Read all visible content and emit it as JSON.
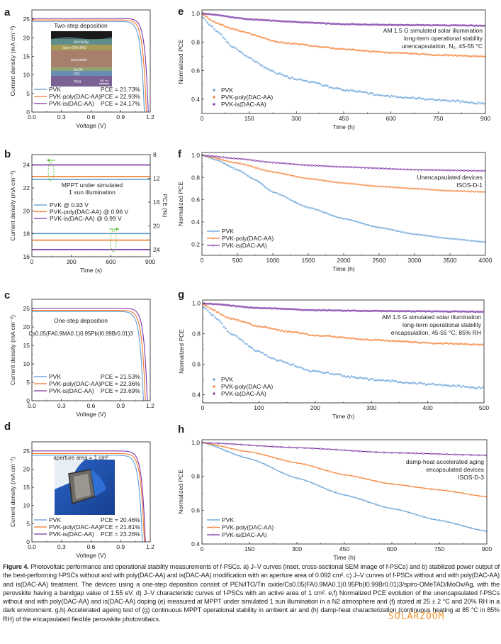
{
  "figure": {
    "caption_label": "Figure 4.",
    "caption_text": "Photovoltaic performance and operational stability measurements of f-PSCs. a) J–V curves (inset, cross-sectional SEM image of f-PSCs) and b) stabilized power output of the best-performing f-PSCs without and with poly(DAC-AA) and is(DAC-AA) modification with an aperture area of 0.092 cm². c) J–V curves of f-PSCs without and with poly(DAC-AA) and is(DAC-AA) treatment. The devices using a one-step deposition consist of PEN/ITO/Tin oxide/Cs0.05(FA0.9MA0.1)0.95Pb(I0.99Br0.01)3/spiro-OMeTAD/MoOx/Ag, with the perovskite having a bandgap value of 1.55 eV. d) J–V characteristic curves of f-PSCs with an active area of 1 cm². e,f) Normalized PCE evolution of the unencapsulated f-PSCs without and with poly(DAC-AA) and is(DAC-AA) doping (e) measured at MPPT under simulated 1 sun illumination in a N2 atmosphere and (f) stored at 25 ± 2 °C and 20% RH in a dark environment. g,h) Accelerated ageing test of (g) continuous MPPT operational stability in ambient air and (h) damp-heat characterization (continuous heating at 85 °C in 85% RH) of the encapsulated flexible perovskite photovoltaics.",
    "watermark": "SOLARZOOM"
  },
  "colors": {
    "PVK": "#5b9bd5",
    "PVK-poly(DAC-AA)": "#f47a2a",
    "PVK-is(DAC-AA)": "#7d33a6",
    "annotation_arrow": "#5fbf3a"
  },
  "chart_data": [
    {
      "panel": "a",
      "type": "line",
      "xlabel": "Voltage (V)",
      "ylabel": "Current density (mA cm⁻²)",
      "xlim": [
        0,
        1.2
      ],
      "ylim": [
        0,
        27.5
      ],
      "xticks": [
        0,
        0.3,
        0.6,
        0.9,
        1.2
      ],
      "xtick_labels": [
        "0.0",
        "0.3",
        "0.6",
        "0.9",
        "1.2"
      ],
      "yticks": [
        0,
        5,
        10,
        15,
        20,
        25
      ],
      "ytick_labels": [
        "0",
        "5",
        "10",
        "15",
        "20",
        "25"
      ],
      "annotations": [
        "Two-step deposition"
      ],
      "inset": {
        "type": "SEM image",
        "layers": [
          "MoOx/Ag",
          "Spiro-OMeTAD",
          "perovskite",
          "SnO2",
          "ITO",
          "PEN"
        ],
        "scale_bar": "500 nm"
      },
      "legend_placement": "bottom-left",
      "series": [
        {
          "name": "PVK",
          "value_label": "PCE = 21.73%",
          "jsc": 24.4,
          "voc": 1.14
        },
        {
          "name": "PVK-poly(DAC-AA)",
          "value_label": "PCE = 22.93%",
          "jsc": 24.8,
          "voc": 1.16
        },
        {
          "name": "PVK-is(DAC-AA)",
          "value_label": "PCE = 24.17%",
          "jsc": 25.2,
          "voc": 1.18
        }
      ]
    },
    {
      "panel": "b",
      "type": "line",
      "xlabel": "Time (s)",
      "ylabel": "Current density (mA cm⁻²)",
      "y2label": "PCE (%)",
      "xlim": [
        0,
        900
      ],
      "ylim": [
        16,
        24.9
      ],
      "y2lim": [
        8,
        25.2
      ],
      "y2_inverted": true,
      "xticks": [
        0,
        300,
        600,
        900
      ],
      "xtick_labels": [
        "0",
        "300",
        "600",
        "900"
      ],
      "yticks": [
        16,
        18,
        20,
        22,
        24
      ],
      "ytick_labels": [
        "16",
        "18",
        "20",
        "22",
        "24"
      ],
      "y2ticks": [
        8,
        12,
        16,
        20,
        24
      ],
      "y2tick_labels": [
        "8",
        "12",
        "16",
        "20",
        "24"
      ],
      "annotations": [
        "MPPT under simulated",
        "1 sun illumination"
      ],
      "legend_placement": "center-left",
      "series": [
        {
          "name": "PVK @ 0.93 V",
          "key": "PVK",
          "current_density": 22.75,
          "pce": 21.3
        },
        {
          "name": "PVK-poly(DAC-AA) @ 0.96 V",
          "key": "PVK-poly(DAC-AA)",
          "current_density": 23.0,
          "pce": 22.4
        },
        {
          "name": "PVK-is(DAC-AA) @ 0.99 V",
          "key": "PVK-is(DAC-AA)",
          "current_density": 24.0,
          "pce": 24.0
        }
      ]
    },
    {
      "panel": "c",
      "type": "line",
      "xlabel": "Voltage (V)",
      "ylabel": "Current density (mA cm⁻²)",
      "xlim": [
        0,
        1.2
      ],
      "ylim": [
        0,
        27.5
      ],
      "xticks": [
        0,
        0.3,
        0.6,
        0.9,
        1.2
      ],
      "xtick_labels": [
        "0.0",
        "0.3",
        "0.6",
        "0.9",
        "1.2"
      ],
      "yticks": [
        0,
        5,
        10,
        15,
        20,
        25
      ],
      "ytick_labels": [
        "0",
        "5",
        "10",
        "15",
        "20",
        "25"
      ],
      "annotations": [
        "One-step deposition",
        "Cs0.05(FA0.9MA0.1)0.95Pb(I0.99Br0.01)3"
      ],
      "legend_placement": "bottom-left",
      "series": [
        {
          "name": "PVK",
          "value_label": "PCE = 21.53%",
          "jsc": 24.2,
          "voc": 1.13
        },
        {
          "name": "PVK-poly(DAC-AA)",
          "value_label": "PCE = 22.36%",
          "jsc": 24.5,
          "voc": 1.15
        },
        {
          "name": "PVK-is(DAC-AA)",
          "value_label": "PCE = 23.69%",
          "jsc": 25.1,
          "voc": 1.17
        }
      ]
    },
    {
      "panel": "d",
      "type": "line",
      "xlabel": "Voltage (V)",
      "ylabel": "Current density (mA cm⁻²)",
      "xlim": [
        0,
        1.2
      ],
      "ylim": [
        0,
        27.5
      ],
      "xticks": [
        0,
        0.3,
        0.6,
        0.9,
        1.2
      ],
      "xtick_labels": [
        "0.0",
        "0.3",
        "0.6",
        "0.9",
        "1.2"
      ],
      "yticks": [
        0,
        5,
        10,
        15,
        20,
        25
      ],
      "ytick_labels": [
        "0",
        "5",
        "10",
        "15",
        "20",
        "25"
      ],
      "annotations": [
        "aperture area = 1 cm²"
      ],
      "inset": {
        "type": "photo of flexible device in blue-gloved hand"
      },
      "legend_placement": "bottom-left",
      "series": [
        {
          "name": "PVK",
          "value_label": "PCE = 20.46%",
          "jsc": 23.8,
          "voc": 1.12
        },
        {
          "name": "PVK-poly(DAC-AA)",
          "value_label": "PCE = 21.81%",
          "jsc": 24.3,
          "voc": 1.14
        },
        {
          "name": "PVK-is(DAC-AA)",
          "value_label": "PCE = 23.26%",
          "jsc": 25.0,
          "voc": 1.15
        }
      ]
    },
    {
      "panel": "e",
      "type": "scatter",
      "xlabel": "Time (h)",
      "ylabel": "Normalized PCE",
      "xlim": [
        0,
        900
      ],
      "ylim": [
        0.3,
        1.025
      ],
      "xticks": [
        0,
        150,
        300,
        450,
        600,
        750,
        900
      ],
      "xtick_labels": [
        "0",
        "150",
        "300",
        "450",
        "600",
        "750",
        "900"
      ],
      "yticks": [
        0.4,
        0.6,
        0.8,
        1.0
      ],
      "ytick_labels": [
        "0.4",
        "0.6",
        "0.8",
        "1.0"
      ],
      "annotations": [
        "AM 1.5 G simulated solar illumination",
        "long-term operational stability",
        "unencapsulation, N₂, 45-55 °C"
      ],
      "legend_placement": "bottom-left",
      "series": [
        {
          "name": "PVK",
          "points": [
            [
              0,
              0.98
            ],
            [
              25,
              0.92
            ],
            [
              50,
              0.87
            ],
            [
              100,
              0.76
            ],
            [
              150,
              0.69
            ],
            [
              200,
              0.62
            ],
            [
              240,
              0.58
            ],
            [
              300,
              0.54
            ],
            [
              450,
              0.465
            ],
            [
              600,
              0.42
            ],
            [
              750,
              0.395
            ],
            [
              900,
              0.37
            ]
          ]
        },
        {
          "name": "PVK-poly(DAC-AA)",
          "points": [
            [
              0,
              0.99
            ],
            [
              50,
              0.93
            ],
            [
              100,
              0.89
            ],
            [
              150,
              0.86
            ],
            [
              240,
              0.8
            ],
            [
              300,
              0.785
            ],
            [
              450,
              0.75
            ],
            [
              600,
              0.725
            ],
            [
              750,
              0.71
            ],
            [
              900,
              0.7
            ]
          ]
        },
        {
          "name": "PVK-is(DAC-AA)",
          "points": [
            [
              0,
              1.0
            ],
            [
              150,
              0.96
            ],
            [
              300,
              0.94
            ],
            [
              450,
              0.925
            ],
            [
              600,
              0.92
            ],
            [
              900,
              0.915
            ]
          ]
        }
      ]
    },
    {
      "panel": "f",
      "type": "line",
      "xlabel": "Time (h)",
      "ylabel": "Normalized PCE",
      "xlim": [
        0,
        4000
      ],
      "ylim": [
        0.1,
        1.025
      ],
      "xticks": [
        0,
        500,
        1000,
        1500,
        2000,
        2500,
        3000,
        3500,
        4000
      ],
      "xtick_labels": [
        "0",
        "500",
        "1000",
        "1500",
        "2000",
        "2500",
        "3000",
        "3500",
        "4000"
      ],
      "yticks": [
        0.2,
        0.4,
        0.6,
        0.8,
        1.0
      ],
      "ytick_labels": [
        "0.2",
        "0.4",
        "0.6",
        "0.8",
        "1.0"
      ],
      "annotations": [
        "Unencapsulated devices",
        "ISOS-D-1"
      ],
      "legend_placement": "bottom-left",
      "series": [
        {
          "name": "PVK",
          "points": [
            [
              0,
              1.0
            ],
            [
              200,
              0.96
            ],
            [
              500,
              0.87
            ],
            [
              750,
              0.78
            ],
            [
              1000,
              0.67
            ],
            [
              1500,
              0.53
            ],
            [
              2000,
              0.43
            ],
            [
              2500,
              0.35
            ],
            [
              3000,
              0.29
            ],
            [
              3500,
              0.25
            ],
            [
              4000,
              0.22
            ]
          ]
        },
        {
          "name": "PVK-poly(DAC-AA)",
          "points": [
            [
              0,
              1.0
            ],
            [
              500,
              0.93
            ],
            [
              1000,
              0.85
            ],
            [
              1500,
              0.79
            ],
            [
              2000,
              0.75
            ],
            [
              2500,
              0.72
            ],
            [
              3000,
              0.7
            ],
            [
              3500,
              0.68
            ],
            [
              4000,
              0.67
            ]
          ]
        },
        {
          "name": "PVK-is(DAC-AA)",
          "points": [
            [
              0,
              1.0
            ],
            [
              500,
              0.97
            ],
            [
              1000,
              0.935
            ],
            [
              1500,
              0.91
            ],
            [
              2000,
              0.895
            ],
            [
              3000,
              0.87
            ],
            [
              4000,
              0.86
            ]
          ]
        }
      ]
    },
    {
      "panel": "g",
      "type": "scatter",
      "xlabel": "Time (h)",
      "ylabel": "Normalized PCE",
      "xlim": [
        0,
        500
      ],
      "ylim": [
        0.347,
        1.022
      ],
      "xticks": [
        0,
        100,
        200,
        300,
        400,
        500
      ],
      "xtick_labels": [
        "0",
        "100",
        "200",
        "300",
        "400",
        "500"
      ],
      "yticks": [
        0.4,
        0.6,
        0.8,
        1.0
      ],
      "ytick_labels": [
        "0.4",
        "0.6",
        "0.8",
        "1.0"
      ],
      "annotations": [
        "AM 1.5 G simulated solar illumination",
        "long-term operational stability",
        "encapsulation, 45-55 °C, 85% RH"
      ],
      "legend_placement": "bottom-left",
      "series": [
        {
          "name": "PVK",
          "points": [
            [
              0,
              0.98
            ],
            [
              25,
              0.9
            ],
            [
              50,
              0.8
            ],
            [
              100,
              0.68
            ],
            [
              130,
              0.63
            ],
            [
              200,
              0.55
            ],
            [
              300,
              0.5
            ],
            [
              400,
              0.47
            ],
            [
              500,
              0.445
            ]
          ]
        },
        {
          "name": "PVK-poly(DAC-AA)",
          "points": [
            [
              0,
              0.99
            ],
            [
              50,
              0.9
            ],
            [
              100,
              0.85
            ],
            [
              150,
              0.815
            ],
            [
              200,
              0.79
            ],
            [
              300,
              0.76
            ],
            [
              400,
              0.74
            ],
            [
              500,
              0.73
            ]
          ]
        },
        {
          "name": "PVK-is(DAC-AA)",
          "points": [
            [
              0,
              1.0
            ],
            [
              100,
              0.97
            ],
            [
              200,
              0.955
            ],
            [
              300,
              0.95
            ],
            [
              500,
              0.945
            ]
          ]
        }
      ]
    },
    {
      "panel": "h",
      "type": "line",
      "xlabel": "Time (h)",
      "ylabel": "Normalized PCE",
      "xlim": [
        0,
        900
      ],
      "ylim": [
        0.4,
        1.017
      ],
      "xticks": [
        0,
        150,
        300,
        450,
        600,
        750,
        900
      ],
      "xtick_labels": [
        "0",
        "150",
        "300",
        "450",
        "600",
        "750",
        "900"
      ],
      "yticks": [
        0.4,
        0.6,
        0.8,
        1.0
      ],
      "ytick_labels": [
        "0.4",
        "0.6",
        "0.8",
        "1.0"
      ],
      "annotations": [
        "damp-heat accelerated aging",
        "encapsulated devices",
        "ISOS-D-3"
      ],
      "legend_placement": "bottom-left",
      "series": [
        {
          "name": "PVK",
          "points": [
            [
              0,
              1.0
            ],
            [
              150,
              0.905
            ],
            [
              300,
              0.79
            ],
            [
              450,
              0.69
            ],
            [
              600,
              0.61
            ],
            [
              750,
              0.54
            ],
            [
              900,
              0.475
            ]
          ]
        },
        {
          "name": "PVK-poly(DAC-AA)",
          "points": [
            [
              0,
              1.0
            ],
            [
              150,
              0.945
            ],
            [
              300,
              0.88
            ],
            [
              450,
              0.81
            ],
            [
              600,
              0.755
            ],
            [
              750,
              0.72
            ],
            [
              900,
              0.68
            ]
          ]
        },
        {
          "name": "PVK-is(DAC-AA)",
          "points": [
            [
              0,
              1.0
            ],
            [
              300,
              0.97
            ],
            [
              600,
              0.94
            ],
            [
              900,
              0.925
            ]
          ]
        }
      ]
    }
  ]
}
